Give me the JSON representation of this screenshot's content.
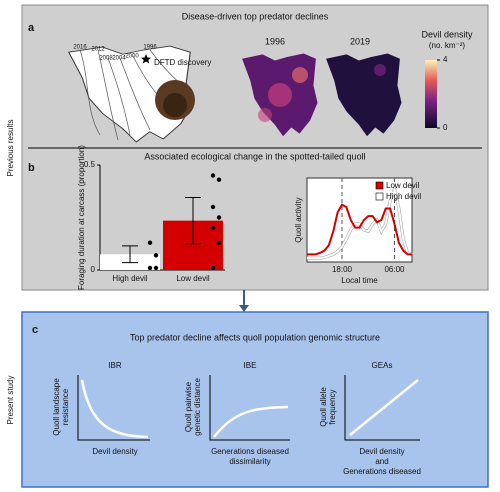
{
  "side_labels": {
    "top": "Previous results",
    "bottom": "Present study"
  },
  "panel_a": {
    "letter": "a",
    "title": "Disease-driven top predator declines",
    "map_years": [
      "2016",
      "2012",
      "2008",
      "2004",
      "2000",
      "1996"
    ],
    "star_label": "DFTD discovery",
    "heatmap_years": [
      "1996",
      "2019"
    ],
    "colorbar": {
      "title": "Devil density",
      "unit": "(no. km⁻²)",
      "lim": [
        0,
        4
      ],
      "ticks": [
        0,
        4
      ]
    }
  },
  "panel_b": {
    "letter": "b",
    "title": "Associated ecological change in the spotted-tailed quoll"
  },
  "chart_data": [
    {
      "type": "bar",
      "ylabel": "Foraging duration at carcass (proportion)",
      "categories": [
        "High devil",
        "Low devil"
      ],
      "values": [
        0.075,
        0.235
      ],
      "errors": [
        0.04,
        0.11
      ],
      "colors": [
        "#ffffff",
        "#d40000"
      ],
      "points": [
        [
          0.13,
          0.07,
          0.01,
          0.01
        ],
        [
          0.45,
          0.43,
          0.3,
          0.25,
          0.2,
          0.13,
          0.01
        ]
      ],
      "ylim": [
        0,
        0.5
      ],
      "yticks": [
        0,
        0.5
      ]
    },
    {
      "type": "line",
      "xlabel": "Local time",
      "ylabel": "Quoll activity",
      "x": [
        10,
        11,
        12,
        13,
        14,
        15,
        16,
        17,
        18,
        19,
        20,
        21,
        22,
        23,
        24,
        25,
        26,
        27,
        28,
        29,
        30,
        31,
        32,
        33,
        34
      ],
      "series": [
        {
          "name": "Low devil",
          "color": "#d40000",
          "values": [
            0.1,
            0.1,
            0.1,
            0.12,
            0.15,
            0.22,
            0.4,
            0.65,
            0.75,
            0.72,
            0.55,
            0.45,
            0.45,
            0.55,
            0.6,
            0.6,
            0.52,
            0.55,
            0.7,
            0.7,
            0.5,
            0.25,
            0.15,
            0.1,
            0.1
          ]
        },
        {
          "name": "High devil",
          "color": "#ffffff",
          "values": [
            0.05,
            0.05,
            0.05,
            0.05,
            0.06,
            0.08,
            0.1,
            0.14,
            0.2,
            0.3,
            0.42,
            0.5,
            0.5,
            0.42,
            0.4,
            0.5,
            0.55,
            0.4,
            0.5,
            0.8,
            0.95,
            0.7,
            0.3,
            0.12,
            0.1
          ]
        }
      ],
      "xlim": [
        10,
        34
      ],
      "ylim": [
        0,
        1.1
      ],
      "xticks": [
        {
          "value": 18,
          "label": "18:00"
        },
        {
          "value": 30,
          "label": "06:00"
        }
      ],
      "legend": "top-right"
    }
  ],
  "panel_c": {
    "letter": "c",
    "title": "Top predator decline affects quoll population genomic structure",
    "plots": [
      {
        "title": "IBR",
        "ylabel": [
          "Quoll landscape",
          "resistance"
        ],
        "xlabel": [
          "Devil density"
        ]
      },
      {
        "title": "IBE",
        "ylabel": [
          "Quoll pairwise",
          "genetic distance"
        ],
        "xlabel": [
          "Generations diseased",
          "dissimilarity"
        ]
      },
      {
        "title": "GEAs",
        "ylabel": [
          "Quoll allele",
          "frequency"
        ],
        "xlabel": [
          "Devil density",
          "and",
          "Generations diseased"
        ]
      }
    ]
  }
}
